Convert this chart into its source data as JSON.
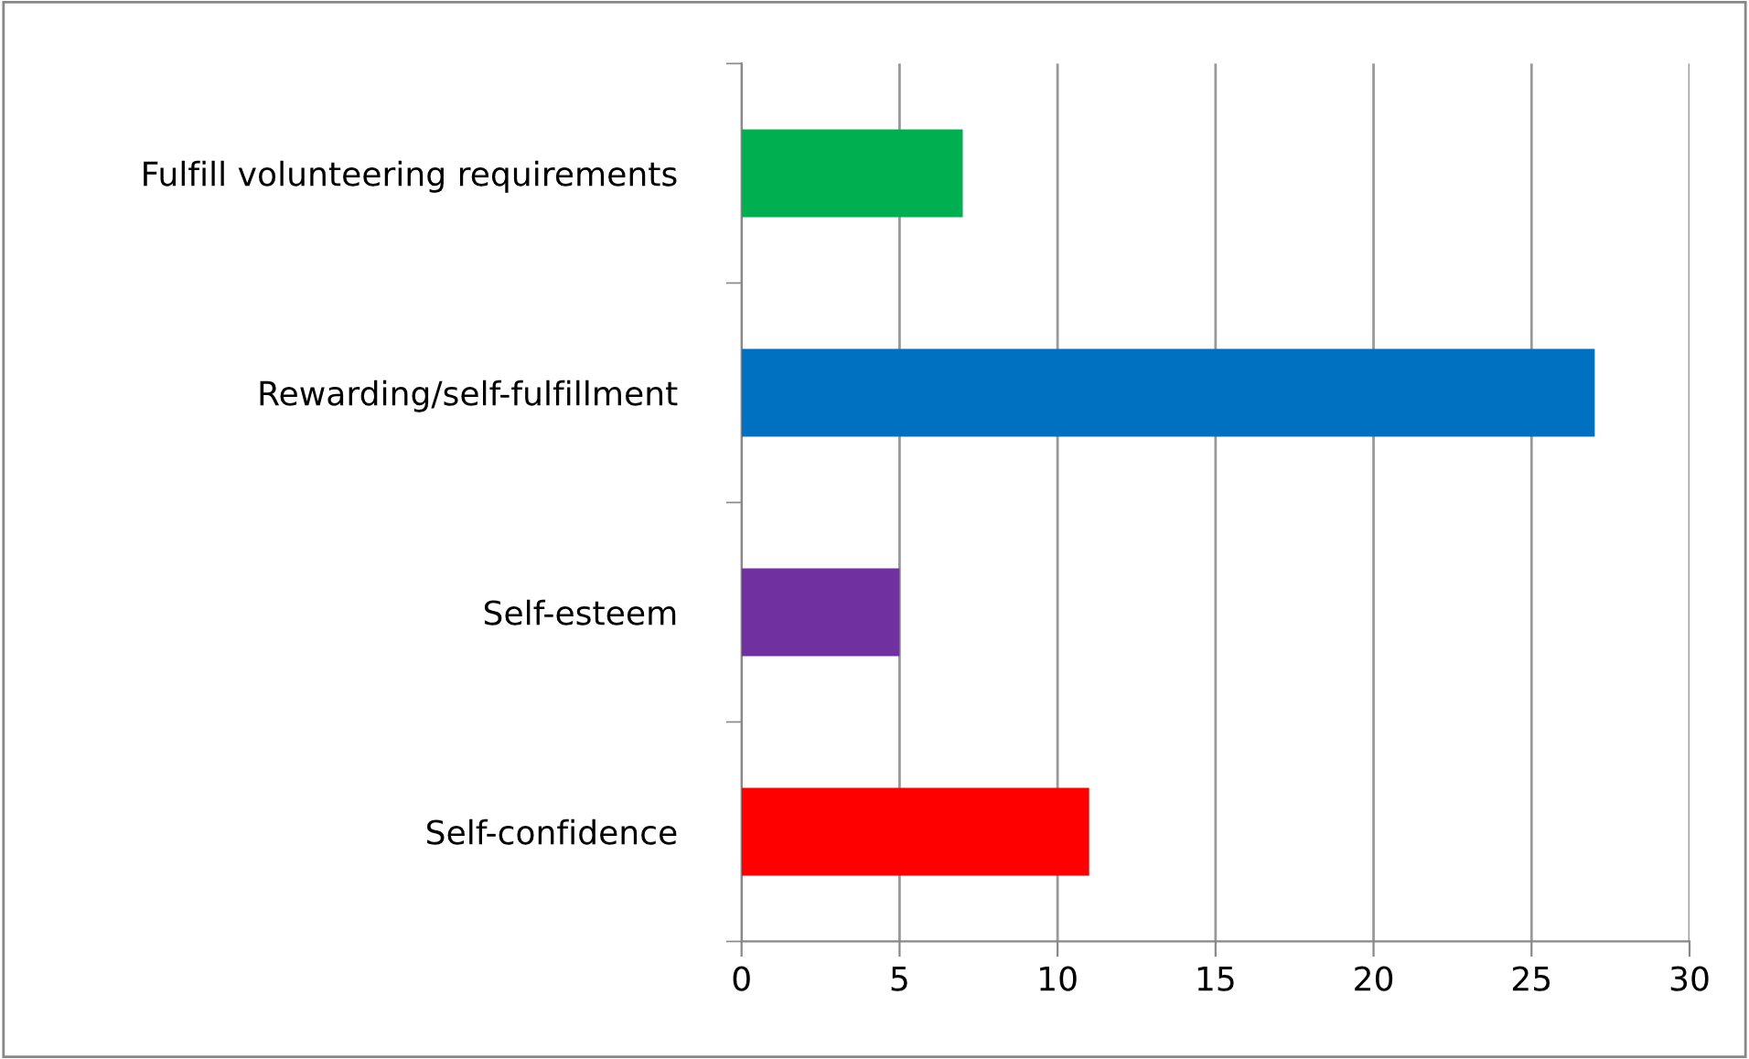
{
  "chart_data": {
    "type": "bar",
    "orientation": "horizontal",
    "categories": [
      "Fulfill volunteering requirements",
      "Rewarding/self-fulfillment",
      "Self-esteem",
      "Self-confidence"
    ],
    "values": [
      7,
      27,
      5,
      11
    ],
    "colors": [
      "#00b050",
      "#0070c0",
      "#7030a0",
      "#ff0000"
    ],
    "xlim": [
      0,
      30
    ],
    "xticks": [
      0,
      5,
      10,
      15,
      20,
      25,
      30
    ],
    "grid": "x",
    "legend": false
  }
}
